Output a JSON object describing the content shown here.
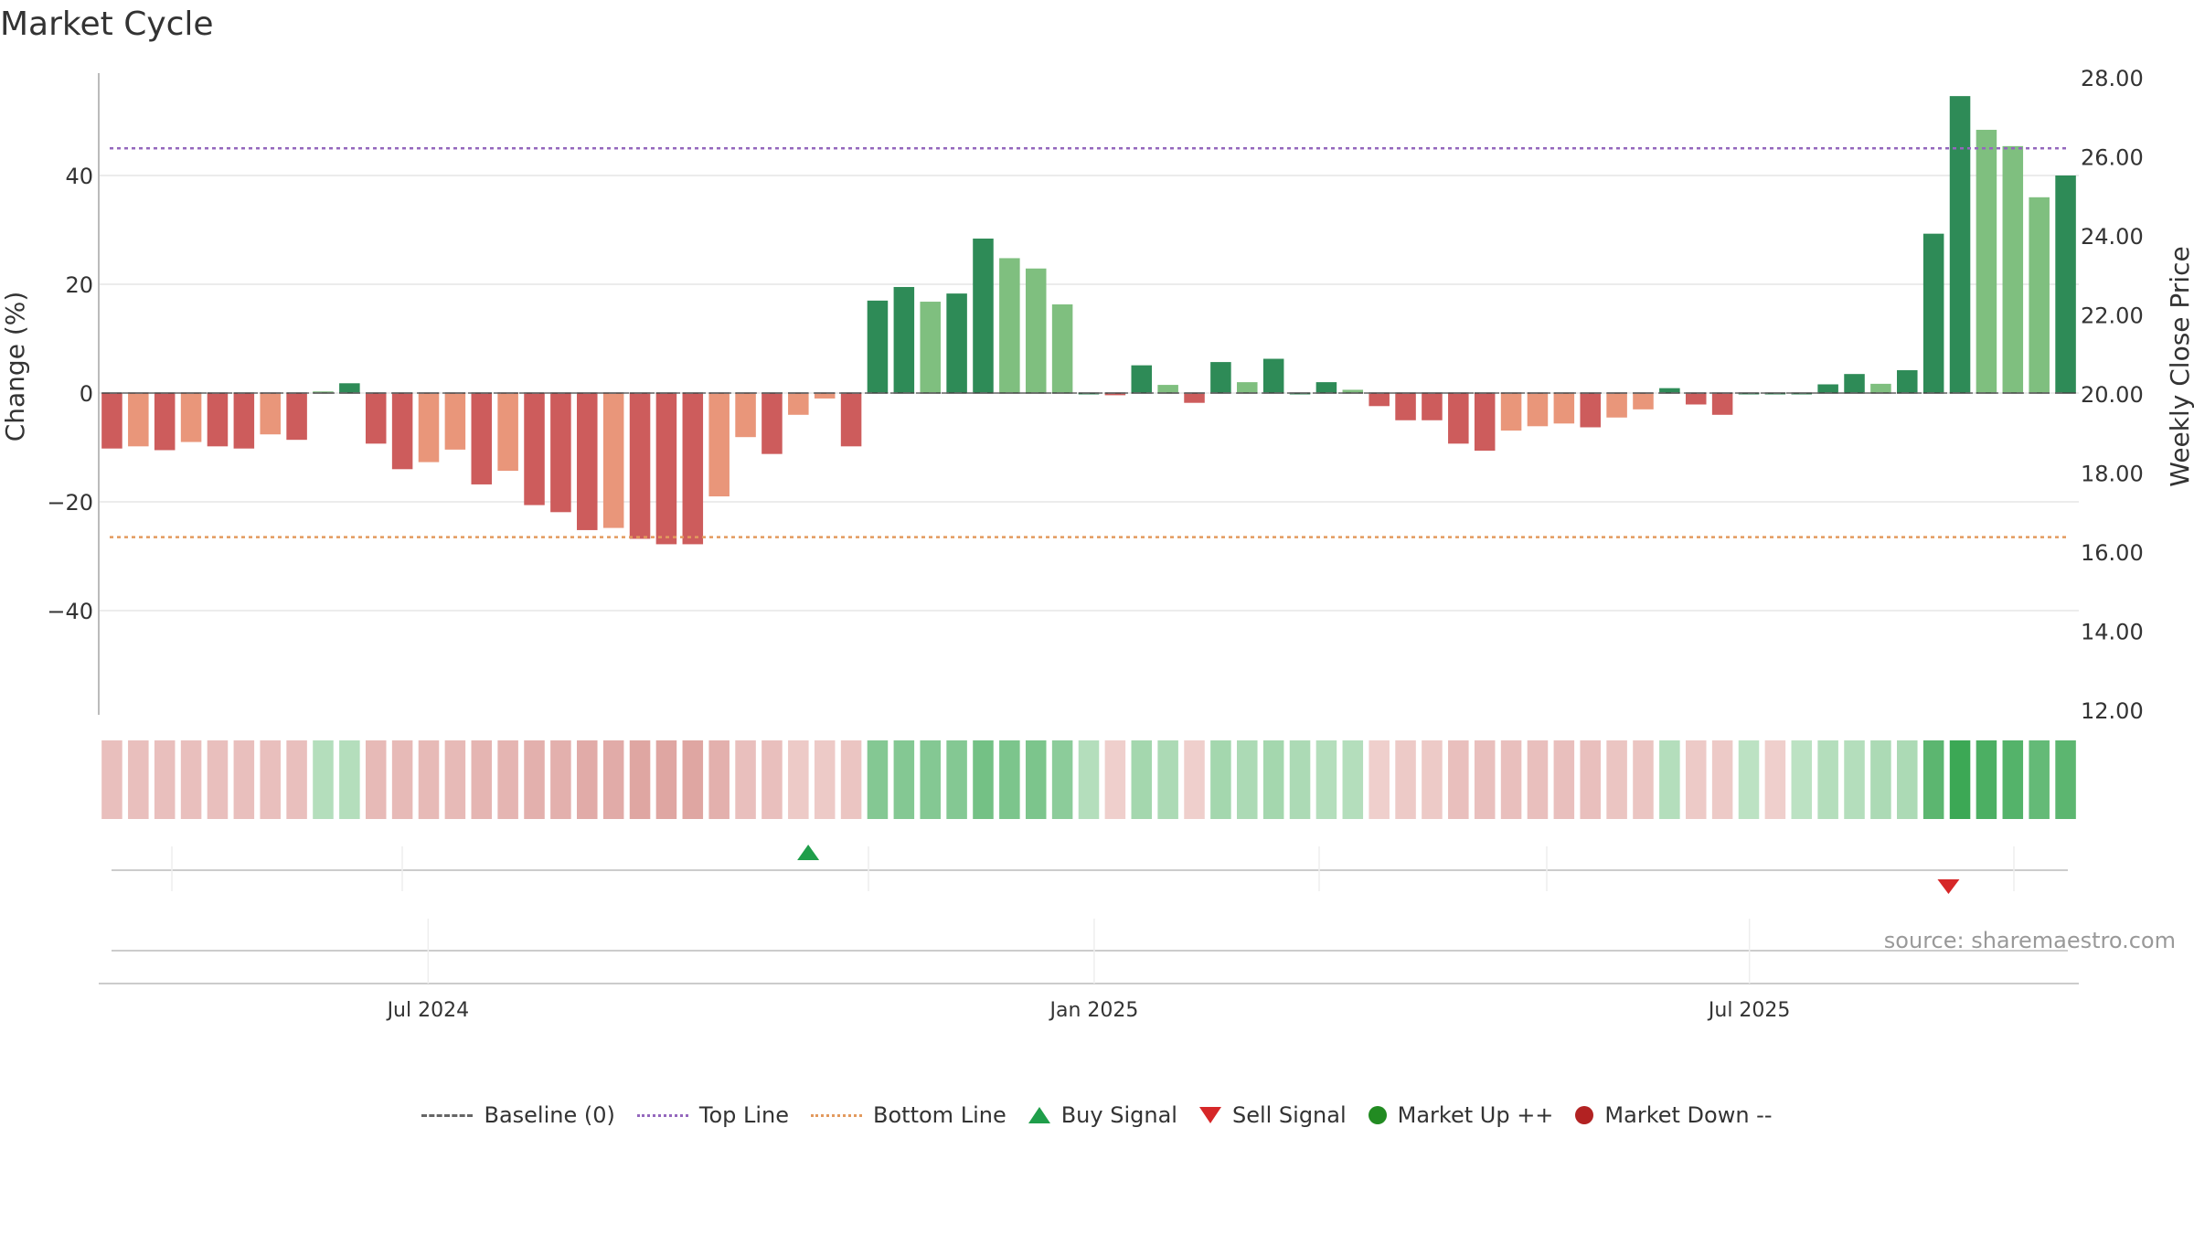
{
  "title": "Market Cycle",
  "source": "source: sharemaestro.com",
  "colors": {
    "strong_up": "#2e8b57",
    "mild_up": "#7fbf7f",
    "strong_down": "#cd5c5c",
    "mild_down": "#e9967a",
    "top_line": "#9467bd",
    "bottom_line": "#e39a5e",
    "baseline": "#666666",
    "buy": "#1f9e4a",
    "sell": "#d62728",
    "market_up": "#228b22",
    "market_down": "#b22222"
  },
  "legend": [
    {
      "label": "Baseline (0)",
      "swatch": "baseline"
    },
    {
      "label": "Top Line",
      "swatch": "top_line"
    },
    {
      "label": "Bottom Line",
      "swatch": "bottom_line"
    },
    {
      "label": "Buy Signal",
      "swatch": "buy"
    },
    {
      "label": "Sell Signal",
      "swatch": "sell"
    },
    {
      "label": "Market Up ++",
      "swatch": "market_up"
    },
    {
      "label": "Market Down --",
      "swatch": "market_down"
    }
  ],
  "chart_data": {
    "type": "bar",
    "title": "Market Cycle",
    "ylabel": "Change (%)",
    "y2label": "Weekly Close Price",
    "ylim": [
      -59,
      59
    ],
    "y2lim": [
      12,
      28
    ],
    "yticks": [
      -40,
      -20,
      0,
      20,
      40
    ],
    "ytick_labels": [
      "−40",
      "−20",
      "0",
      "20",
      "40"
    ],
    "y2ticks": [
      12,
      14,
      16,
      18,
      20,
      22,
      24,
      26,
      28
    ],
    "y2tick_labels": [
      "12.00",
      "14.00",
      "16.00",
      "18.00",
      "20.00",
      "22.00",
      "24.00",
      "26.00",
      "28.00"
    ],
    "top_line": 45,
    "bottom_line": -26.5,
    "grid": true,
    "legend_position": "bottom",
    "x_start": "2024-04-01",
    "x_end": "2025-09-30",
    "xticks": [
      {
        "date": "2024-07-01",
        "label": "Jul 2024"
      },
      {
        "date": "2025-01-01",
        "label": "Jan 2025"
      },
      {
        "date": "2025-07-01",
        "label": "Jul 2025"
      }
    ],
    "weeks_start": "2024-04-01",
    "values": [
      -10.2,
      -9.8,
      -10.5,
      -9.0,
      -9.8,
      -10.2,
      -7.6,
      -8.6,
      0.3,
      1.8,
      -9.3,
      -14.0,
      -12.7,
      -10.4,
      -16.8,
      -14.3,
      -20.6,
      -21.9,
      -25.2,
      -24.8,
      -26.8,
      -27.8,
      -27.8,
      -19.0,
      -8.1,
      -11.2,
      -4.0,
      -1.0,
      -9.8,
      17.0,
      19.5,
      16.8,
      18.3,
      28.4,
      24.8,
      22.9,
      16.3,
      0.0,
      -0.4,
      5.1,
      1.5,
      -1.8,
      5.7,
      2.0,
      6.3,
      0.0,
      2.0,
      0.6,
      -2.4,
      -5.0,
      -5.0,
      -9.3,
      -10.6,
      -6.9,
      -6.1,
      -5.6,
      -6.3,
      -4.5,
      -3.0,
      0.9,
      -2.1,
      -4.0,
      0.0,
      0.0,
      0.0,
      1.6,
      3.5,
      1.7,
      4.2,
      29.3,
      54.6,
      48.4,
      45.4,
      36.0,
      40.0
    ],
    "categories": [
      "SD",
      "MD",
      "SD",
      "MD",
      "SD",
      "SD",
      "MD",
      "SD",
      "MU",
      "SU",
      "SD",
      "SD",
      "MD",
      "MD",
      "SD",
      "MD",
      "SD",
      "SD",
      "SD",
      "MD",
      "SD",
      "SD",
      "SD",
      "MD",
      "MD",
      "SD",
      "MD",
      "MD",
      "SD",
      "SU",
      "SU",
      "MU",
      "SU",
      "SU",
      "MU",
      "MU",
      "MU",
      "SU",
      "SD",
      "SU",
      "MU",
      "SD",
      "SU",
      "MU",
      "SU",
      "SU",
      "SU",
      "MU",
      "SD",
      "SD",
      "SD",
      "SD",
      "SD",
      "MD",
      "MD",
      "MD",
      "SD",
      "MD",
      "MD",
      "SU",
      "SD",
      "SD",
      "SU",
      "SU",
      "SU",
      "SU",
      "SU",
      "MU",
      "SU",
      "SU",
      "SU",
      "MU",
      "MU",
      "MU",
      "SU"
    ],
    "heat": [
      -0.3,
      -0.3,
      -0.3,
      -0.3,
      -0.3,
      -0.3,
      -0.3,
      -0.3,
      0.25,
      0.25,
      -0.35,
      -0.35,
      -0.35,
      -0.35,
      -0.4,
      -0.4,
      -0.45,
      -0.45,
      -0.5,
      -0.5,
      -0.55,
      -0.55,
      -0.55,
      -0.45,
      -0.3,
      -0.3,
      -0.2,
      -0.2,
      -0.25,
      0.55,
      0.55,
      0.55,
      0.55,
      0.65,
      0.6,
      0.6,
      0.5,
      0.25,
      -0.15,
      0.35,
      0.3,
      -0.15,
      0.35,
      0.3,
      0.35,
      0.3,
      0.25,
      0.25,
      -0.15,
      -0.2,
      -0.2,
      -0.3,
      -0.3,
      -0.3,
      -0.3,
      -0.3,
      -0.3,
      -0.25,
      -0.25,
      0.25,
      -0.2,
      -0.2,
      0.2,
      -0.15,
      0.2,
      0.25,
      0.25,
      0.3,
      0.3,
      0.8,
      1.0,
      0.9,
      0.85,
      0.75,
      0.8
    ],
    "buy_signals": [
      "2024-10-14"
    ],
    "sell_signals": [
      "2025-08-25"
    ]
  }
}
